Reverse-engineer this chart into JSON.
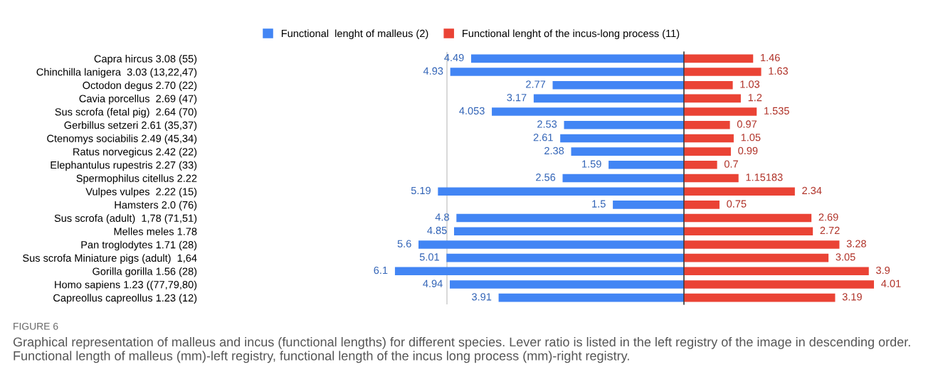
{
  "chart_data": [
    {
      "type": "bar",
      "orientation": "horizontal",
      "legend": "top",
      "grid": "x",
      "categories": [
        "Capra hircus 3.08 (55)",
        "Chinchilla lanigera  3.03 (13,22,47)",
        "Octodon degus 2.70 (22)",
        "Cavia porcellus  2.69 (47)",
        "Sus scrofa (fetal pig)  2.64 (70)",
        "Gerbillus setzeri 2.61 (35,37)",
        "Ctenomys sociabilis 2.49 (45,34)",
        "Ratus norvegicus 2.42 (22)",
        "Elephantulus rupestris 2.27 (33)",
        "Spermophilus citellus 2.22",
        "Vulpes vulpes  2.22 (15)",
        "Hamsters 2.0 (76)",
        "Sus scrofa (adult)  1,78 (71,51)",
        "Melles meles 1.78",
        "Pan troglodytes 1.71 (28)",
        "Sus scrofa Miniature pigs (adult)  1,64",
        "Gorilla gorilla 1.56 (28)",
        "Homo sapiens 1.23 ((77,79,80)",
        "Capreollus capreollus 1.23 (12)"
      ],
      "xlim": [
        6.1,
        0
      ],
      "xticks": [
        {
          "value": 5,
          "label": null
        }
      ],
      "series": [
        {
          "name": "Functional  lenght of malleus (2)",
          "color": "#4285f4",
          "values": [
            4.49,
            4.93,
            2.77,
            3.17,
            4.053,
            2.53,
            2.61,
            2.38,
            1.59,
            2.56,
            5.19,
            1.5,
            4.8,
            4.85,
            5.6,
            5.01,
            6.1,
            4.94,
            3.91
          ],
          "value_labels": [
            "4.49",
            "4.93",
            "2.77",
            "3.17",
            "4.053",
            "2.53",
            "2.61",
            "2.38",
            "1.59",
            "2.56",
            "5.19",
            "1.5",
            "4.8",
            "4.85",
            "5.6",
            "5.01",
            "6.1",
            "4.94",
            "3.91"
          ]
        }
      ]
    },
    {
      "type": "bar",
      "orientation": "horizontal",
      "legend": "top",
      "categories": [
        null,
        null,
        null,
        null,
        null,
        null,
        null,
        null,
        null,
        null,
        null,
        null,
        null,
        null,
        null,
        null,
        null,
        null,
        null
      ],
      "xlim": [
        0,
        4.01
      ],
      "series": [
        {
          "name": "Functional lenght of the incus-long process (11)",
          "color": "#ea4335",
          "values": [
            1.46,
            1.63,
            1.03,
            1.2,
            1.535,
            0.97,
            1.05,
            0.99,
            0.7,
            1.15183,
            2.34,
            0.75,
            2.69,
            2.72,
            3.28,
            3.05,
            3.9,
            4.01,
            3.19
          ],
          "value_labels": [
            "1.46",
            "1.63",
            "1.03",
            "1.2",
            "1.535",
            "0.97",
            "1.05",
            "0.99",
            "0.7",
            "1.15183",
            "2.34",
            "0.75",
            "2.69",
            "2.72",
            "3.28",
            "3.05",
            "3.9",
            "4.01",
            "3.19"
          ]
        }
      ],
      "annotations": [
        "FIGURE 6",
        "Graphical representation of malleus and incus (functional lengths) for different species. Lever ratio is listed in the left registry of the image in descending order. Functional length of malleus (mm)-left registry, functional length of the incus long process (mm)-right registry."
      ]
    }
  ]
}
